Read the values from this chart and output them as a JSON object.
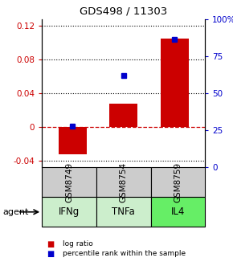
{
  "title": "GDS498 / 11303",
  "samples": [
    "GSM8749",
    "GSM8754",
    "GSM8759"
  ],
  "agents": [
    "IFNg",
    "TNFa",
    "IL4"
  ],
  "agent_colors": [
    "#cceecc",
    "#cceecc",
    "#66ee66"
  ],
  "log_ratios": [
    -0.032,
    0.028,
    0.105
  ],
  "percentile_ranks": [
    0.28,
    0.62,
    0.86
  ],
  "bar_color": "#cc0000",
  "dot_color": "#0000cc",
  "ylim_left": [
    -0.048,
    0.128
  ],
  "ylim_right": [
    0.0,
    1.0
  ],
  "yticks_left": [
    -0.04,
    0.0,
    0.04,
    0.08,
    0.12
  ],
  "ytick_labels_left": [
    "-0.04",
    "0",
    "0.04",
    "0.08",
    "0.12"
  ],
  "yticks_right": [
    0.0,
    0.25,
    0.5,
    0.75,
    1.0
  ],
  "ytick_labels_right": [
    "0",
    "25",
    "50",
    "75",
    "100%"
  ],
  "hline_dotted": [
    0.04,
    0.08,
    0.12
  ],
  "hline_dotted_neg": [
    -0.04
  ],
  "zero_line_color": "#cc0000",
  "sample_box_color": "#cccccc",
  "bar_width": 0.55,
  "legend_log_ratio": "log ratio",
  "legend_percentile": "percentile rank within the sample",
  "agent_arrow_label": "agent"
}
